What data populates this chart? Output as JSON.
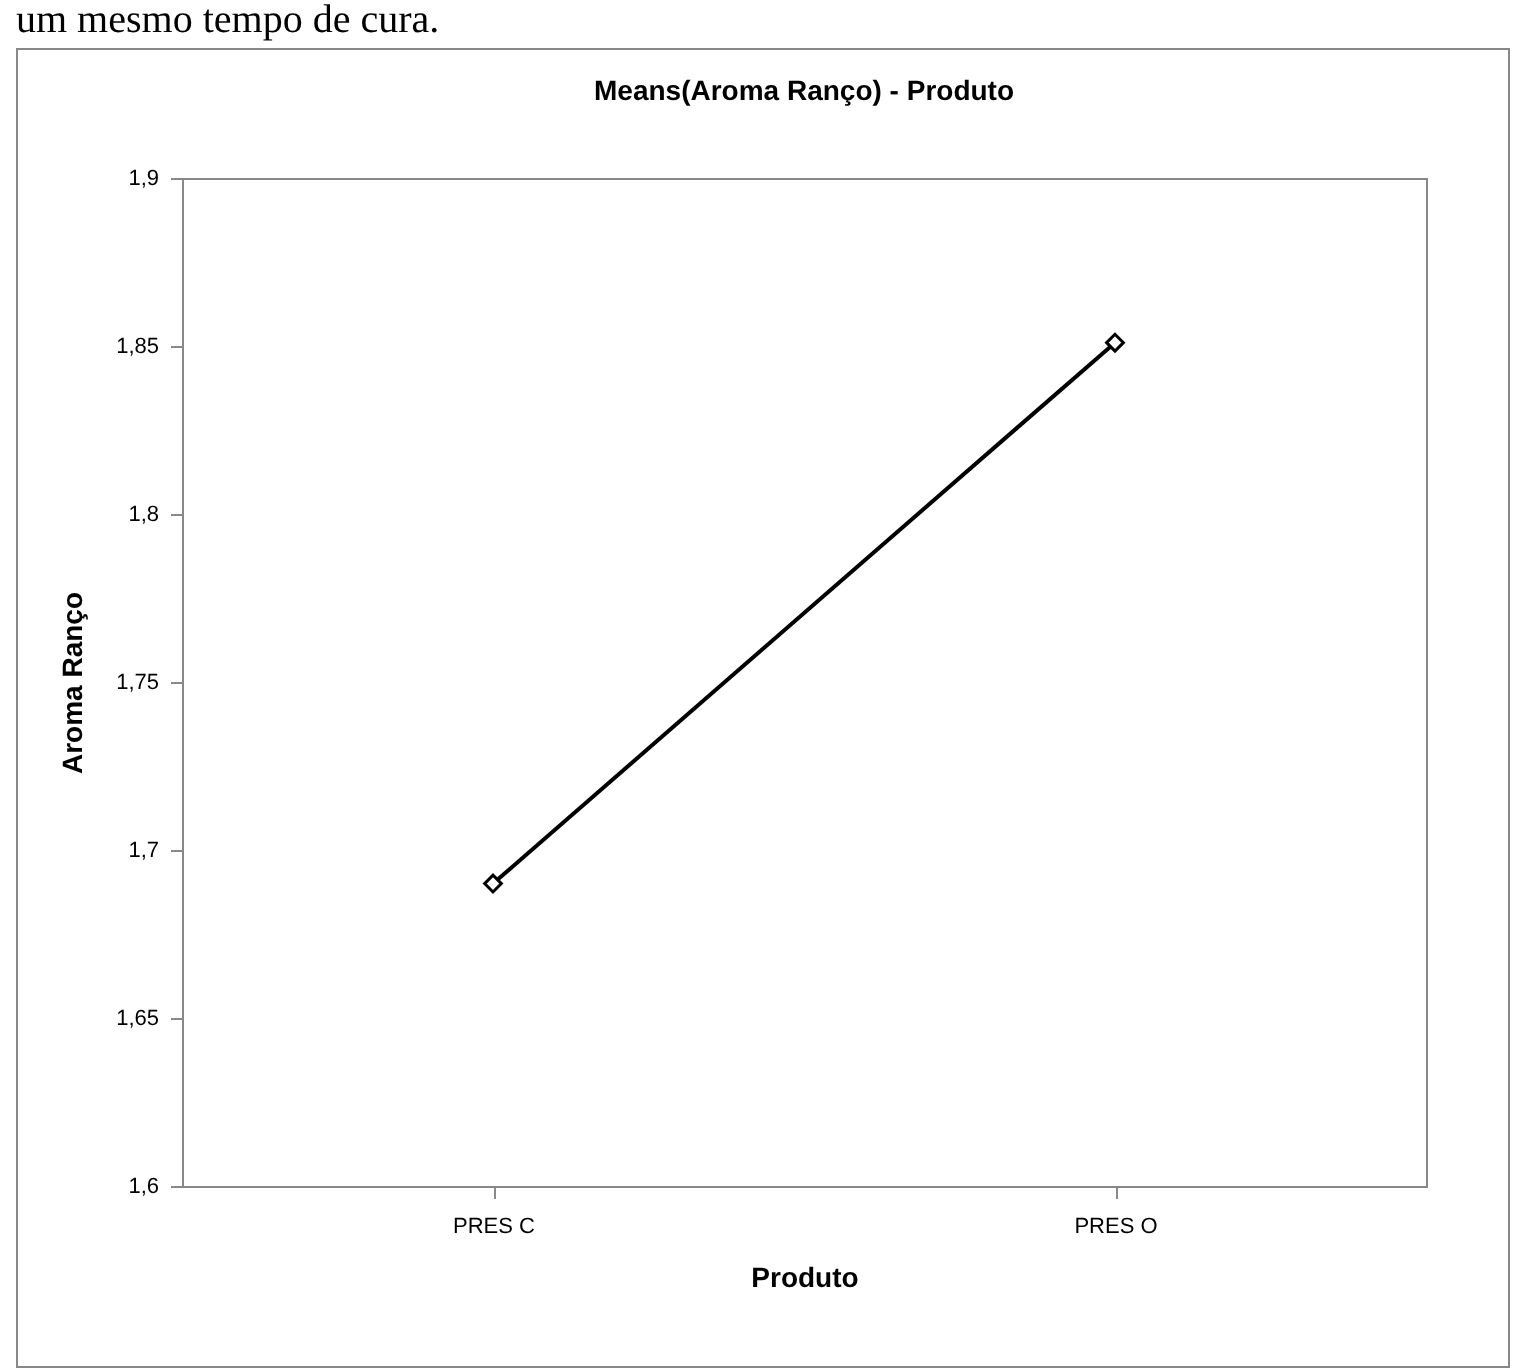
{
  "chart_data": {
    "type": "line",
    "title": "Means(Aroma Ranço) - Produto",
    "xlabel": "Produto",
    "ylabel": "Aroma Ranço",
    "annotations": [
      "um mesmo tempo de cura."
    ],
    "categories": [
      "PRES C",
      "PRES O"
    ],
    "series": [
      {
        "color": "#000000",
        "values": [
          1.69,
          1.851
        ]
      }
    ],
    "ylim": [
      1.6,
      1.9
    ],
    "yticks": [
      {
        "value": 1.6,
        "label": "1,6"
      },
      {
        "value": 1.65,
        "label": "1,65"
      },
      {
        "value": 1.7,
        "label": "1,7"
      },
      {
        "value": 1.75,
        "label": "1,75"
      },
      {
        "value": 1.8,
        "label": "1,8"
      },
      {
        "value": 1.85,
        "label": "1,85"
      },
      {
        "value": 1.9,
        "label": "1,9"
      }
    ],
    "marker": "diamond",
    "line_style": "solid",
    "grid": false,
    "legend": false
  }
}
